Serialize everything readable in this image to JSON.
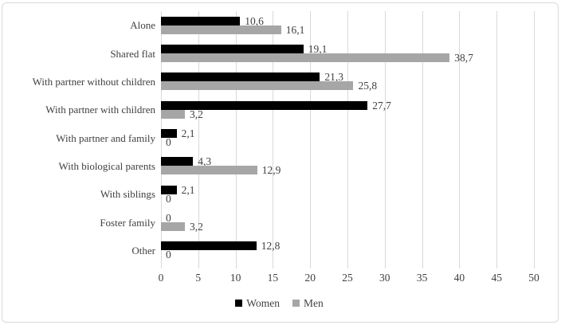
{
  "chart_data": {
    "type": "bar",
    "orientation": "horizontal",
    "title": "",
    "xlabel": "",
    "ylabel": "",
    "categories": [
      "Alone",
      "Shared flat",
      "With partner without children",
      "With partner with children",
      "With partner and family",
      "With biological parents",
      "With siblings",
      "Foster family",
      "Other"
    ],
    "series": [
      {
        "name": "Women",
        "color": "#000000",
        "values": [
          10.6,
          19.1,
          21.3,
          27.7,
          2.1,
          4.3,
          2.1,
          0,
          12.8
        ],
        "labels": [
          "10,6",
          "19,1",
          "21,3",
          "27,7",
          "2,1",
          "4,3",
          "2,1",
          "0",
          "12,8"
        ]
      },
      {
        "name": "Men",
        "color": "#a6a6a6",
        "values": [
          16.1,
          38.7,
          25.8,
          3.2,
          0,
          12.9,
          0,
          3.2,
          0
        ],
        "labels": [
          "16,1",
          "38,7",
          "25,8",
          "3,2",
          "0",
          "12,9",
          "0",
          "3,2",
          "0"
        ]
      }
    ],
    "xlim": [
      0,
      50
    ],
    "xticks": [
      0,
      5,
      10,
      15,
      20,
      25,
      30,
      35,
      40,
      45,
      50
    ],
    "grid": true,
    "legend_position": "bottom",
    "colors": {
      "gridline": "#d9d9d9",
      "frame_border": "#d9d9d9",
      "text": "#404040",
      "background": "#ffffff"
    }
  }
}
